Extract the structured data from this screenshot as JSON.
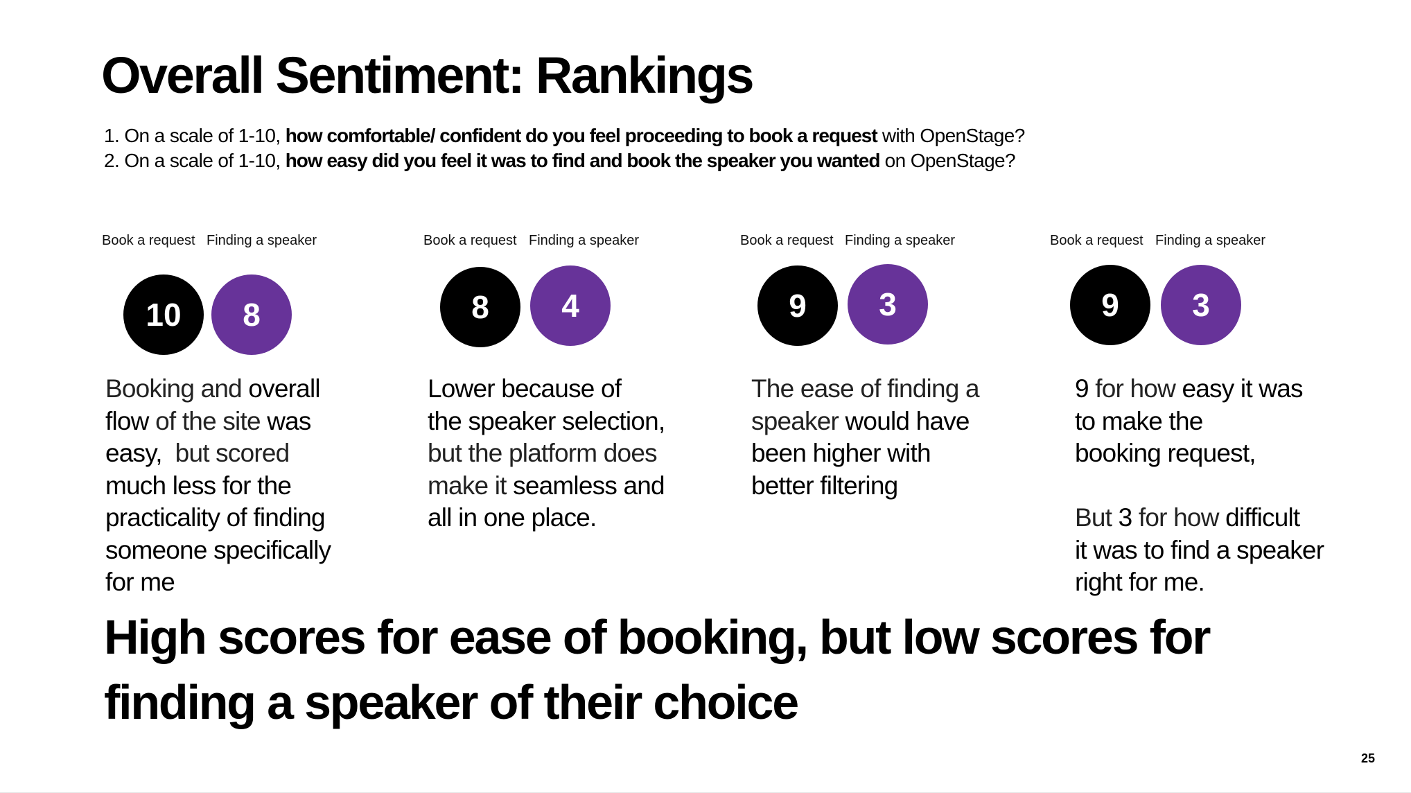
{
  "title": "Overall Sentiment: Rankings",
  "questions": [
    {
      "prefix": "1. On a scale of 1-10, ",
      "bold": "how comfortable/ confident do you feel proceeding to book a request",
      "suffix": " with OpenStage?"
    },
    {
      "prefix": "2. On a scale of 1-10, ",
      "bold": "how easy did you feel it was to find and book the speaker you wanted",
      "suffix": " on OpenStage?"
    }
  ],
  "labels": {
    "book": "Book a request",
    "finding": "Finding a speaker"
  },
  "colors": {
    "book_circle": "#000000",
    "finding_circle": "#673399",
    "text": "#000000"
  },
  "respondents": [
    {
      "book_score": "10",
      "finding_score": "8",
      "comment": [
        [
          {
            "t": "Booking and ",
            "s": "l"
          },
          {
            "t": "overall",
            "s": "r"
          }
        ],
        [
          {
            "t": "flow",
            "s": "r"
          },
          {
            "t": " of the site ",
            "s": "l"
          },
          {
            "t": "was",
            "s": "r"
          }
        ],
        [
          {
            "t": "easy,",
            "s": "r"
          },
          {
            "t": "  but scored",
            "s": "l"
          }
        ],
        [
          {
            "t": "much less for the",
            "s": "r"
          }
        ],
        [
          {
            "t": "practicality of finding",
            "s": "r"
          }
        ],
        [
          {
            "t": "someone specifically",
            "s": "r"
          }
        ],
        [
          {
            "t": "for me",
            "s": "r"
          }
        ]
      ]
    },
    {
      "book_score": "8",
      "finding_score": "4",
      "comment": [
        [
          {
            "t": "Lower because of",
            "s": "r"
          }
        ],
        [
          {
            "t": "the speaker selection,",
            "s": "r"
          }
        ],
        [
          {
            "t": "but the platform does",
            "s": "l"
          }
        ],
        [
          {
            "t": "make it ",
            "s": "l"
          },
          {
            "t": "seamless and",
            "s": "r"
          }
        ],
        [
          {
            "t": "all in one place.",
            "s": "r"
          }
        ]
      ]
    },
    {
      "book_score": "9",
      "finding_score": "3",
      "comment": [
        [
          {
            "t": "The ease of finding a",
            "s": "l"
          }
        ],
        [
          {
            "t": "speaker ",
            "s": "l"
          },
          {
            "t": "would have",
            "s": "r"
          }
        ],
        [
          {
            "t": "been higher with",
            "s": "r"
          }
        ],
        [
          {
            "t": "better filtering",
            "s": "r"
          }
        ]
      ]
    },
    {
      "book_score": "9",
      "finding_score": "3",
      "comment": [
        [
          {
            "t": "9",
            "s": "r"
          },
          {
            "t": " for how ",
            "s": "l"
          },
          {
            "t": "easy it was",
            "s": "r"
          }
        ],
        [
          {
            "t": "to make the",
            "s": "r"
          }
        ],
        [
          {
            "t": "booking request,",
            "s": "r"
          }
        ],
        [
          {
            "t": "",
            "s": "l"
          }
        ],
        [
          {
            "t": "But ",
            "s": "l"
          },
          {
            "t": "3",
            "s": "r"
          },
          {
            "t": " for how ",
            "s": "l"
          },
          {
            "t": "difficult",
            "s": "r"
          }
        ],
        [
          {
            "t": "it was to find a speaker",
            "s": "r"
          }
        ],
        [
          {
            "t": "right for me.",
            "s": "r"
          }
        ]
      ]
    }
  ],
  "conclusion": {
    "line1": "High scores for ease of booking, but low scores for",
    "line2": "finding a speaker of their choice"
  },
  "page_number": "25"
}
